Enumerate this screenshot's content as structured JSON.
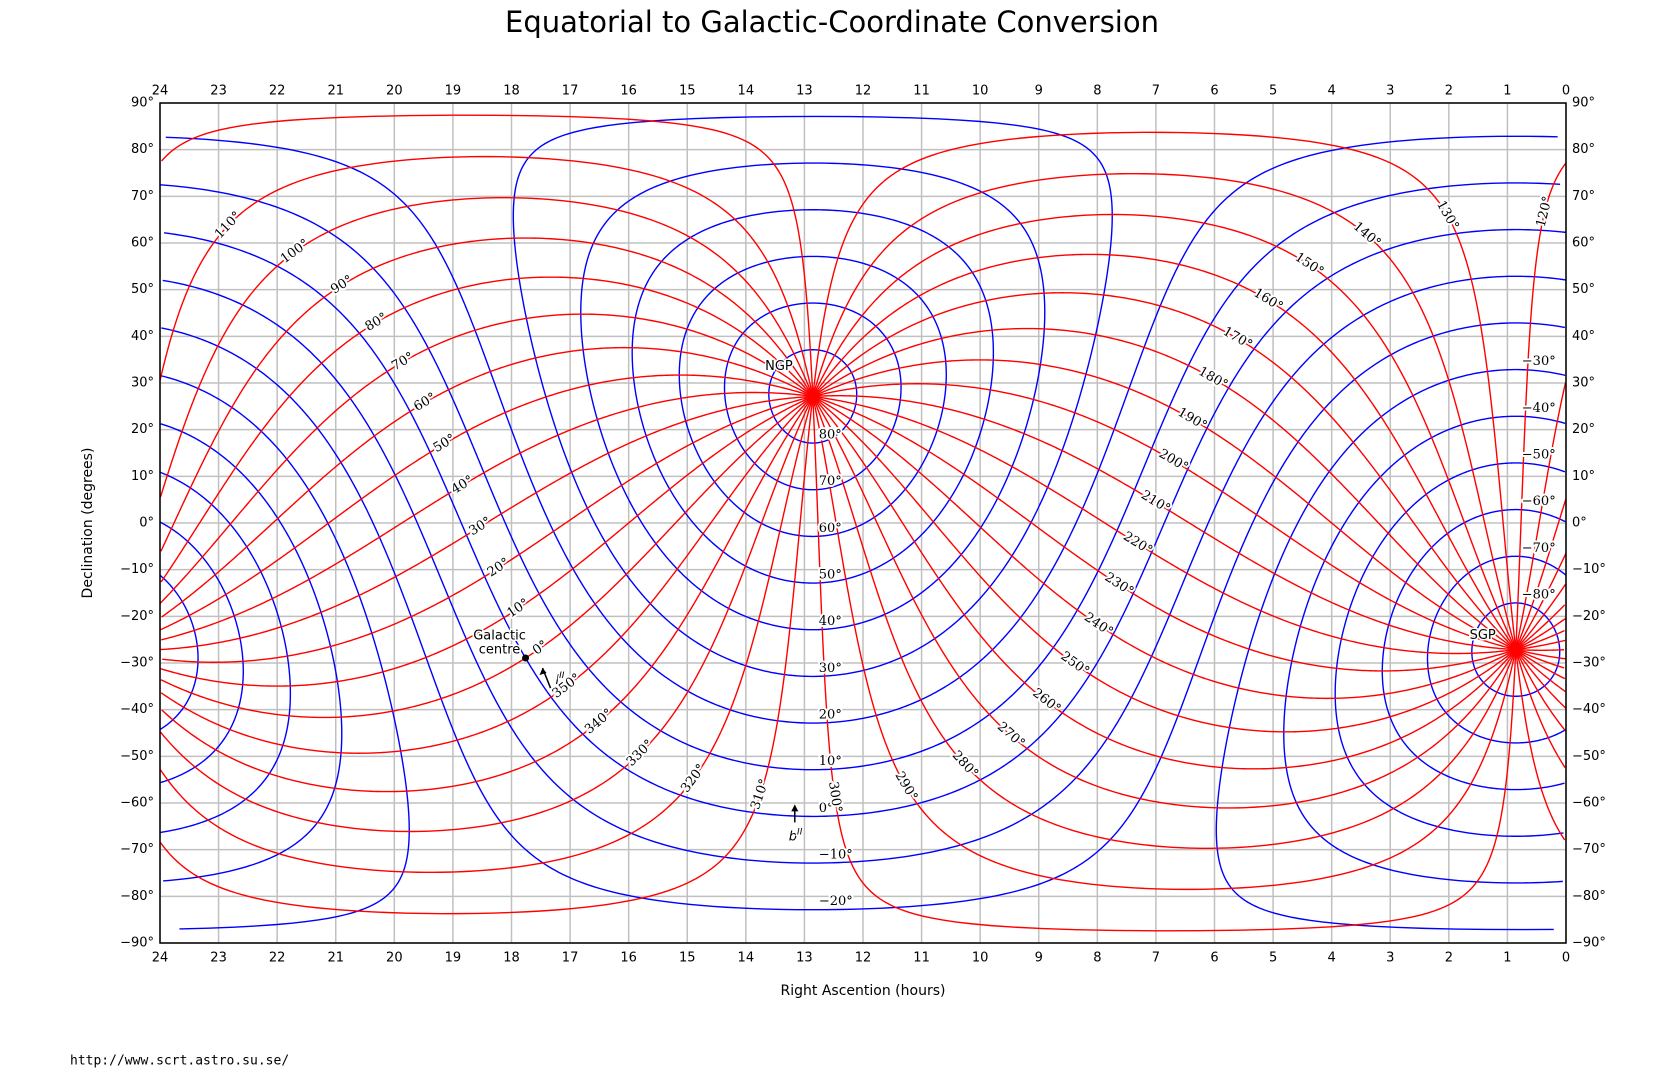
{
  "chart_data": {
    "type": "galactic-grid",
    "title": "Equatorial to Galactic-Coordinate Conversion",
    "x_label": "Right Ascention (hours)",
    "y_label": "Declination (degrees)",
    "xlim": [
      24,
      0
    ],
    "xticks": [
      24,
      23,
      22,
      21,
      20,
      19,
      18,
      17,
      16,
      15,
      14,
      13,
      12,
      11,
      10,
      9,
      8,
      7,
      6,
      5,
      4,
      3,
      2,
      1,
      0
    ],
    "ylim": [
      -90,
      90
    ],
    "yticks": [
      {
        "value": -90,
        "label": "−90°"
      },
      {
        "value": -80,
        "label": "−80°"
      },
      {
        "value": -70,
        "label": "−70°"
      },
      {
        "value": -60,
        "label": "−60°"
      },
      {
        "value": -50,
        "label": "−50°"
      },
      {
        "value": -40,
        "label": "−40°"
      },
      {
        "value": -30,
        "label": "−30°"
      },
      {
        "value": -20,
        "label": "−20°"
      },
      {
        "value": -10,
        "label": "−10°"
      },
      {
        "value": 0,
        "label": "0°"
      },
      {
        "value": 10,
        "label": "10°"
      },
      {
        "value": 20,
        "label": "20°"
      },
      {
        "value": 30,
        "label": "30°"
      },
      {
        "value": 40,
        "label": "40°"
      },
      {
        "value": 50,
        "label": "50°"
      },
      {
        "value": 60,
        "label": "60°"
      },
      {
        "value": 70,
        "label": "70°"
      },
      {
        "value": 80,
        "label": "80°"
      },
      {
        "value": 90,
        "label": "90°"
      }
    ],
    "grid": true,
    "grid_color": "#c0c0c0",
    "longitude_lines": {
      "color": "#ff0000",
      "values": [
        0,
        10,
        20,
        30,
        40,
        50,
        60,
        70,
        80,
        90,
        100,
        110,
        120,
        130,
        140,
        150,
        160,
        170,
        180,
        190,
        200,
        210,
        220,
        230,
        240,
        250,
        260,
        270,
        280,
        290,
        300,
        310,
        320,
        330,
        340,
        350
      ],
      "value_labels": [
        "0°",
        "10°",
        "20°",
        "30°",
        "40°",
        "50°",
        "60°",
        "70°",
        "80°",
        "90°",
        "100°",
        "110°",
        "120°",
        "130°",
        "140°",
        "150°",
        "160°",
        "170°",
        "180°",
        "190°",
        "200°",
        "210°",
        "220°",
        "230°",
        "240°",
        "250°",
        "260°",
        "270°",
        "280°",
        "290°",
        "300°",
        "310°",
        "320°",
        "330°",
        "340°",
        "350°"
      ]
    },
    "latitude_lines": {
      "color": "#0000ff",
      "values": [
        -80,
        -70,
        -60,
        -50,
        -40,
        -30,
        -20,
        -10,
        0,
        10,
        20,
        30,
        40,
        50,
        60,
        70,
        80
      ],
      "value_labels": [
        "−80°",
        "−70°",
        "−60°",
        "−50°",
        "−40°",
        "−30°",
        "−20°",
        "−10°",
        "0°",
        "10°",
        "20°",
        "30°",
        "40°",
        "50°",
        "60°",
        "70°",
        "80°"
      ]
    },
    "annotations": {
      "ngp": "NGP",
      "sgp": "SGP",
      "galactic_centre": [
        "Galactic",
        "centre"
      ],
      "l_axis": {
        "symbol": "l",
        "superscript": "II"
      },
      "b_axis": {
        "symbol": "b",
        "superscript": "II"
      }
    },
    "source": "http://www.scrt.astro.su.se/"
  }
}
